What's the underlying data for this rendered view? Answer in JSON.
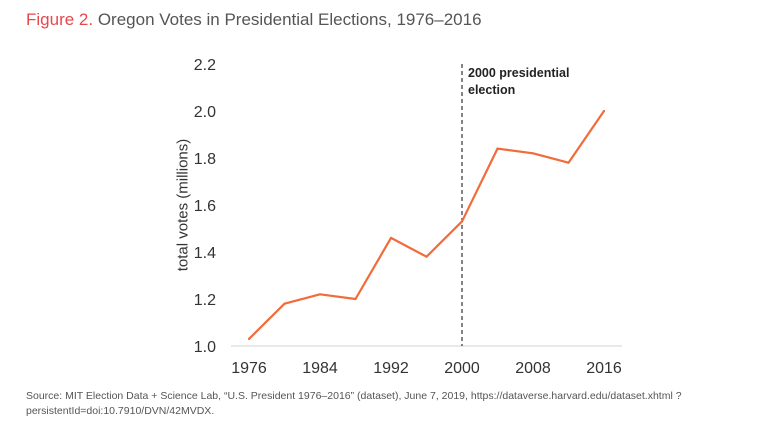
{
  "title": {
    "figure_label": "Figure 2.",
    "text": "Oregon Votes in Presidential Elections, 1976–2016"
  },
  "source": "Source: MIT Election Data + Science Lab, “U.S. President 1976–2016” (dataset), June 7, 2019, https://dataverse.harvard.edu/dataset.xhtml ?persistentId=doi:10.7910/DVN/42MVDX.",
  "chart_data": {
    "type": "line",
    "title": "Oregon Votes in Presidential Elections, 1976–2016",
    "xlabel": "",
    "ylabel": "total votes (millions)",
    "x": [
      1976,
      1980,
      1984,
      1988,
      1992,
      1996,
      2000,
      2004,
      2008,
      2012,
      2016
    ],
    "series": [
      {
        "values": [
          1.03,
          1.18,
          1.22,
          1.2,
          1.46,
          1.38,
          1.53,
          1.84,
          1.82,
          1.78,
          2.0
        ],
        "color": "#f26b3a"
      }
    ],
    "xlim": [
      1976,
      2016
    ],
    "ylim": [
      1.0,
      2.2
    ],
    "xticks": [
      "1976",
      "1984",
      "1992",
      "2000",
      "2008",
      "2016"
    ],
    "yticks": [
      "1.0",
      "1.2",
      "1.4",
      "1.6",
      "1.8",
      "2.0",
      "2.2"
    ],
    "grid": false,
    "annotation": {
      "x": 2000,
      "text_line1": "2000 presidential",
      "text_line2": "election",
      "style": "dashed vertical line"
    }
  }
}
